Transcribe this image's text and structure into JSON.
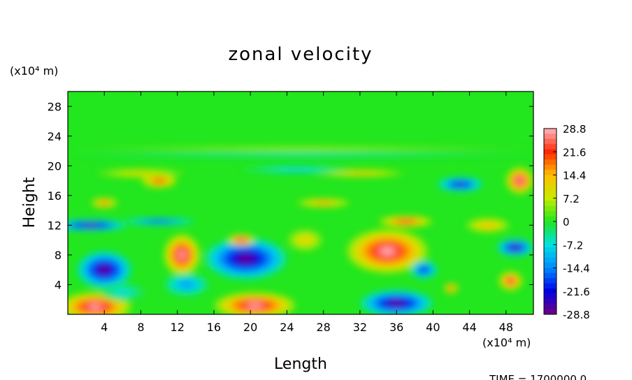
{
  "chart_data": {
    "type": "heatmap",
    "title": "zonal velocity",
    "xlabel": "Length",
    "ylabel": "Height",
    "x_unit": "(x10⁴ m)",
    "y_unit": "(x10⁴ m)",
    "xlim": [
      0,
      51
    ],
    "ylim": [
      0,
      30
    ],
    "x_ticks": [
      4,
      8,
      12,
      16,
      20,
      24,
      28,
      32,
      36,
      40,
      44,
      48
    ],
    "y_ticks": [
      4,
      8,
      12,
      16,
      20,
      24,
      28
    ],
    "colorbar": {
      "ticks": [
        28.8,
        21.6,
        14.4,
        7.2,
        0,
        -7.2,
        -14.4,
        -21.6,
        -28.8
      ],
      "range": [
        -28.8,
        28.8
      ]
    },
    "background_value": 0,
    "features": [
      {
        "x": 3,
        "y": 1,
        "rx": 4,
        "ry": 2,
        "value": 29
      },
      {
        "x": 4,
        "y": 6,
        "rx": 3,
        "ry": 2.5,
        "value": -29
      },
      {
        "x": 12.5,
        "y": 8,
        "rx": 2,
        "ry": 2.8,
        "value": 29
      },
      {
        "x": 19.5,
        "y": 7.5,
        "rx": 4.5,
        "ry": 2.8,
        "value": -29
      },
      {
        "x": 20.5,
        "y": 1.2,
        "rx": 4.5,
        "ry": 1.8,
        "value": 29
      },
      {
        "x": 35,
        "y": 8.5,
        "rx": 4.5,
        "ry": 3,
        "value": 29
      },
      {
        "x": 36,
        "y": 1.5,
        "rx": 4,
        "ry": 1.8,
        "value": -29
      },
      {
        "x": 10,
        "y": 18,
        "rx": 2,
        "ry": 1,
        "value": 22
      },
      {
        "x": 4,
        "y": 15,
        "rx": 1.5,
        "ry": 0.7,
        "value": 20
      },
      {
        "x": 2.5,
        "y": 12,
        "rx": 4,
        "ry": 0.8,
        "value": -28
      },
      {
        "x": 10,
        "y": 12.5,
        "rx": 4,
        "ry": 0.5,
        "value": -20
      },
      {
        "x": 49.5,
        "y": 18,
        "rx": 1.5,
        "ry": 1.8,
        "value": 29
      },
      {
        "x": 43,
        "y": 17.5,
        "rx": 2.5,
        "ry": 1,
        "value": -25
      },
      {
        "x": 49,
        "y": 9,
        "rx": 2,
        "ry": 1.2,
        "value": -28
      },
      {
        "x": 48.5,
        "y": 4.5,
        "rx": 1.3,
        "ry": 1.3,
        "value": 26
      },
      {
        "x": 39,
        "y": 6,
        "rx": 1.5,
        "ry": 1.2,
        "value": -22
      },
      {
        "x": 42,
        "y": 3.5,
        "rx": 0.8,
        "ry": 0.7,
        "value": 22
      },
      {
        "x": 19,
        "y": 10,
        "rx": 1.5,
        "ry": 0.8,
        "value": 28
      },
      {
        "x": 6,
        "y": 3,
        "rx": 2.5,
        "ry": 1.2,
        "value": -8
      },
      {
        "x": 28,
        "y": 15,
        "rx": 3,
        "ry": 0.6,
        "value": 18
      },
      {
        "x": 37,
        "y": 12.5,
        "rx": 3,
        "ry": 0.8,
        "value": 24
      },
      {
        "x": 13,
        "y": 4,
        "rx": 2.5,
        "ry": 1.5,
        "value": -14
      },
      {
        "x": 46,
        "y": 12,
        "rx": 2.5,
        "ry": 1,
        "value": 15
      },
      {
        "x": 26,
        "y": 10,
        "rx": 2,
        "ry": 1.5,
        "value": 12
      },
      {
        "x": 32,
        "y": 19,
        "rx": 5,
        "ry": 0.5,
        "value": 15
      },
      {
        "x": 25,
        "y": 19.5,
        "rx": 6,
        "ry": 0.5,
        "value": -10
      },
      {
        "x": 8,
        "y": 19,
        "rx": 5,
        "ry": 0.6,
        "value": 12
      },
      {
        "x": 25.5,
        "y": 21.5,
        "rx": 25,
        "ry": 0.4,
        "value": -6
      },
      {
        "x": 25.5,
        "y": 22.3,
        "rx": 25,
        "ry": 0.4,
        "value": 6
      }
    ]
  },
  "footer": {
    "time_label": "TIME  =  1700000.0"
  }
}
